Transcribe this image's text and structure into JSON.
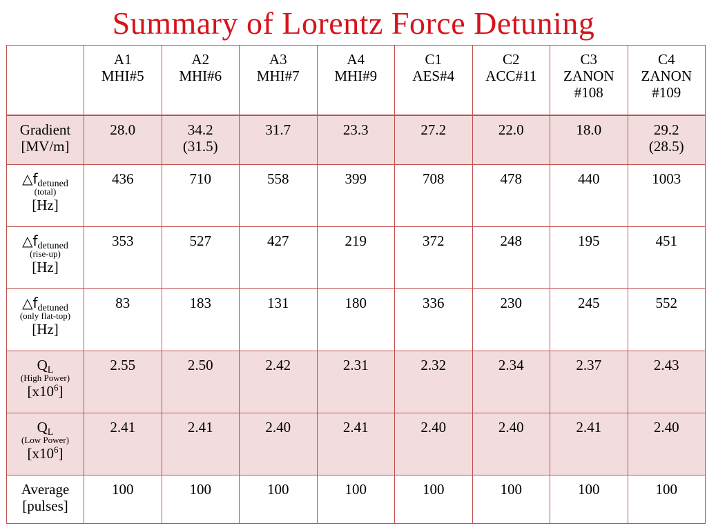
{
  "title": "Summary of Lorentz Force Detuning",
  "columns": [
    {
      "id": "A1",
      "name": "MHI#5"
    },
    {
      "id": "A2",
      "name": "MHI#6"
    },
    {
      "id": "A3",
      "name": "MHI#7"
    },
    {
      "id": "A4",
      "name": "MHI#9"
    },
    {
      "id": "C1",
      "name": "AES#4"
    },
    {
      "id": "C2",
      "name": "ACC#11"
    },
    {
      "id": "C3",
      "name": "ZANON",
      "name2": "#108"
    },
    {
      "id": "C4",
      "name": "ZANON",
      "name2": "#109"
    }
  ],
  "rows": {
    "gradient": {
      "label": "Gradient",
      "unit": "[MV/m]",
      "values": [
        "28.0",
        "34.2",
        "31.7",
        "23.3",
        "27.2",
        "22.0",
        "18.0",
        "29.2"
      ],
      "sub_values": [
        "",
        "(31.5)",
        "",
        "",
        "",
        "",
        "",
        "(28.5)"
      ]
    },
    "detune_total": {
      "symbol": "△f",
      "sub": "detuned",
      "note": "(total)",
      "unit": "[Hz]",
      "values": [
        "436",
        "710",
        "558",
        "399",
        "708",
        "478",
        "440",
        "1003"
      ]
    },
    "detune_riseup": {
      "symbol": "△f",
      "sub": "detuned",
      "note": "(rise-up)",
      "unit": "[Hz]",
      "values": [
        "353",
        "527",
        "427",
        "219",
        "372",
        "248",
        "195",
        "451"
      ]
    },
    "detune_flattop": {
      "symbol": "△f",
      "sub": "detuned",
      "note": "(only flat-top)",
      "unit": "[Hz]",
      "values": [
        "83",
        "183",
        "131",
        "180",
        "336",
        "230",
        "245",
        "552"
      ]
    },
    "ql_high": {
      "symbol": "Q",
      "sub": "L",
      "note": "(High Power)",
      "unit_base": "[x10",
      "unit_exp": "6",
      "unit_end": "]",
      "values": [
        "2.55",
        "2.50",
        "2.42",
        "2.31",
        "2.32",
        "2.34",
        "2.37",
        "2.43"
      ]
    },
    "ql_low": {
      "symbol": "Q",
      "sub": "L",
      "note": "(Low Power)",
      "unit_base": "[x10",
      "unit_exp": "6",
      "unit_end": "]",
      "values": [
        "2.41",
        "2.41",
        "2.40",
        "2.41",
        "2.40",
        "2.40",
        "2.41",
        "2.40"
      ]
    },
    "average": {
      "label": "Average",
      "unit": "[pulses]",
      "values": [
        "100",
        "100",
        "100",
        "100",
        "100",
        "100",
        "100",
        "100"
      ]
    }
  },
  "colors": {
    "title": "#d5141c",
    "border": "#c0504d",
    "shade": "#f2dcdd"
  }
}
